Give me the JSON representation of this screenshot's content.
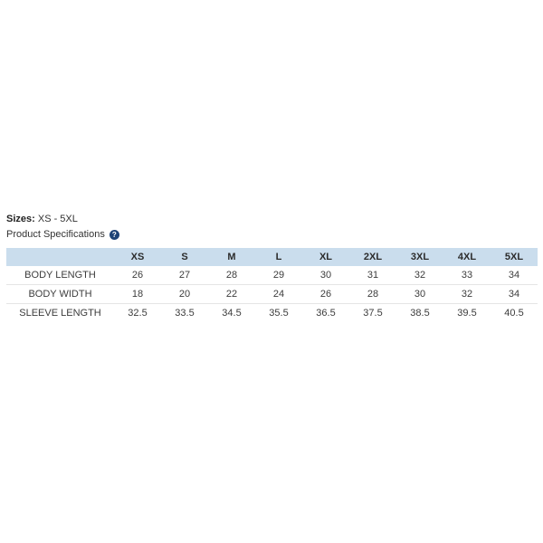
{
  "product": {
    "sizes_label": "Sizes:",
    "sizes_value": "XS - 5XL",
    "spec_heading": "Product Specifications",
    "help_icon_glyph": "?"
  },
  "icons": {
    "help": "question-mark-circle-icon"
  },
  "colors": {
    "table_header_bg": "#cadded",
    "help_icon_bg": "#1d4376",
    "row_border": "#e5e5e5",
    "text": "#333333"
  },
  "table": {
    "columns": [
      "XS",
      "S",
      "M",
      "L",
      "XL",
      "2XL",
      "3XL",
      "4XL",
      "5XL"
    ],
    "rows": [
      {
        "label": "BODY LENGTH",
        "values": [
          "26",
          "27",
          "28",
          "29",
          "30",
          "31",
          "32",
          "33",
          "34"
        ]
      },
      {
        "label": "BODY WIDTH",
        "values": [
          "18",
          "20",
          "22",
          "24",
          "26",
          "28",
          "30",
          "32",
          "34"
        ]
      },
      {
        "label": "SLEEVE LENGTH",
        "values": [
          "32.5",
          "33.5",
          "34.5",
          "35.5",
          "36.5",
          "37.5",
          "38.5",
          "39.5",
          "40.5"
        ]
      }
    ]
  }
}
